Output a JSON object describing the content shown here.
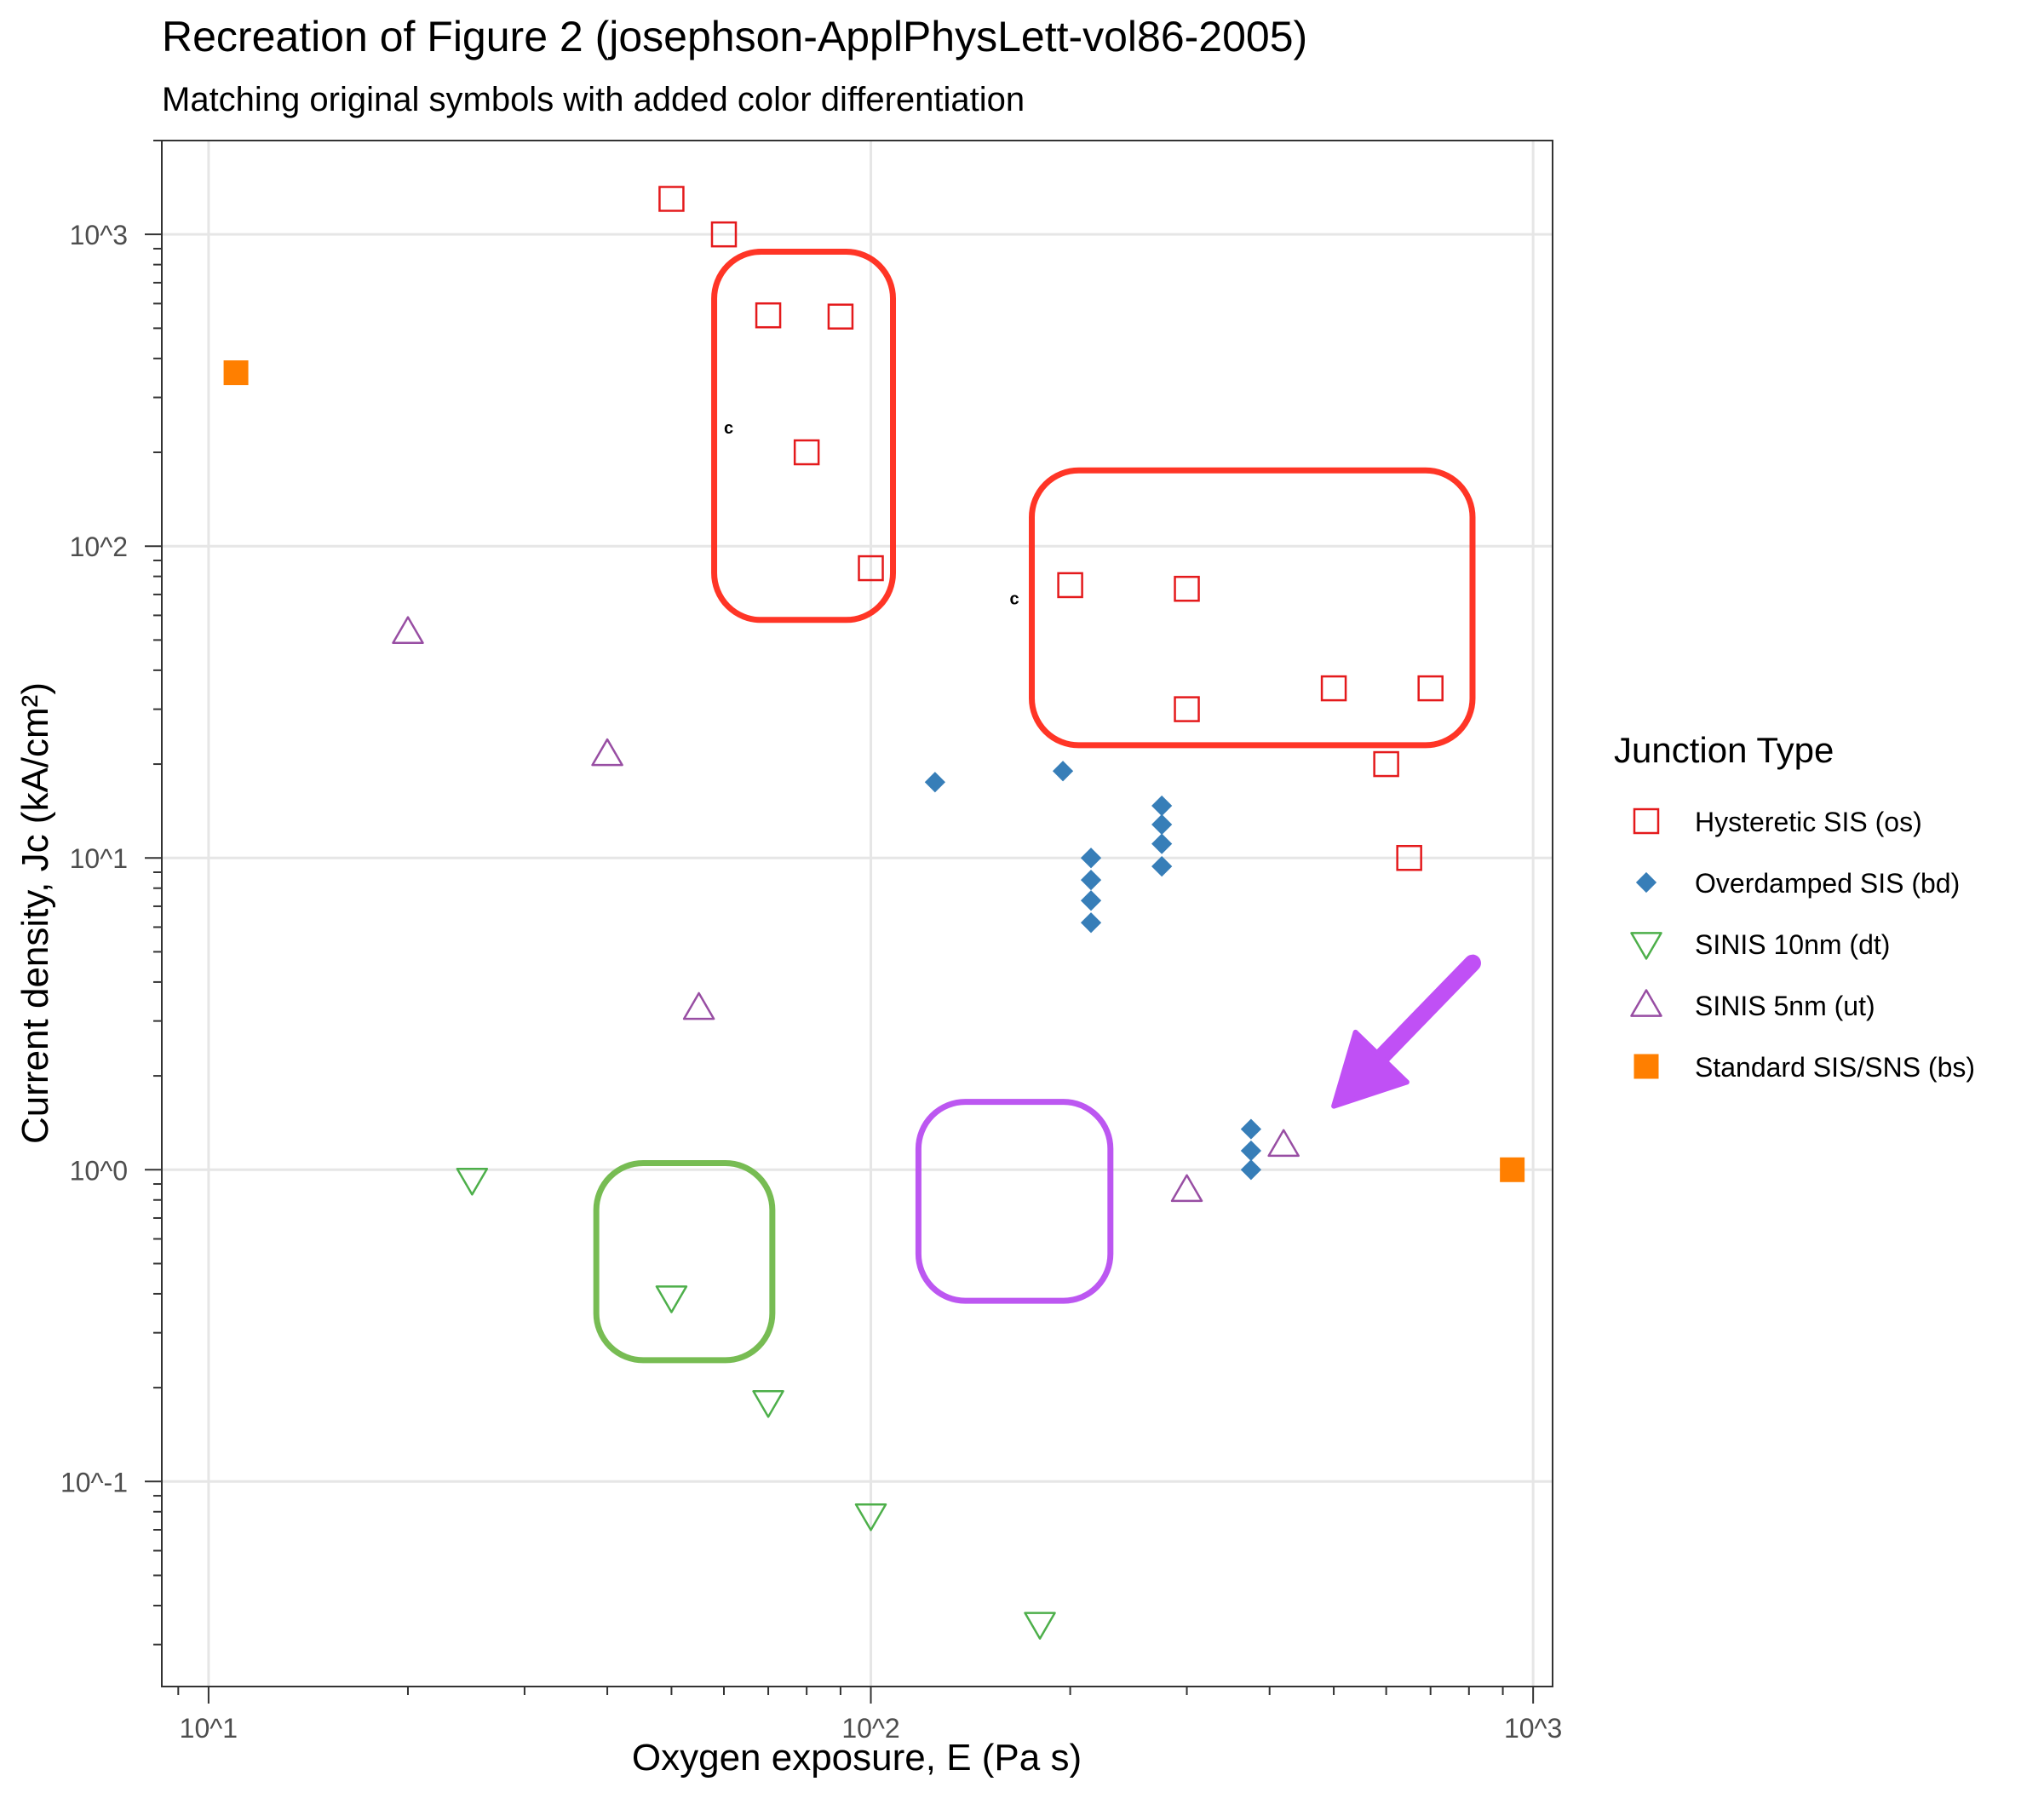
{
  "chart_data": {
    "type": "scatter",
    "title": "Recreation of Figure 2 (josephson-ApplPhysLett-vol86-2005)",
    "subtitle": "Matching original symbols with added color differentiation",
    "xlabel": "Oxygen exposure, E (Pa s)",
    "ylabel": "Current density, Jc (kA/cm²)",
    "x_scale": "log10",
    "y_scale": "log10",
    "xlim": [
      8.5,
      1070
    ],
    "ylim": [
      0.022,
      2000
    ],
    "x_ticks": [
      {
        "value": 10,
        "label": "10^1"
      },
      {
        "value": 100,
        "label": "10^2"
      },
      {
        "value": 1000,
        "label": "10^3"
      }
    ],
    "y_ticks": [
      {
        "value": 0.1,
        "label": "10^-1"
      },
      {
        "value": 1,
        "label": "10^0"
      },
      {
        "value": 10,
        "label": "10^1"
      },
      {
        "value": 100,
        "label": "10^2"
      },
      {
        "value": 1000,
        "label": "10^3"
      }
    ],
    "grid": true,
    "legend": {
      "title": "Junction Type",
      "position": "right"
    },
    "series": [
      {
        "name": "Hysteretic SIS (os)",
        "marker": "open-square",
        "color": "#e41a1c",
        "points": [
          [
            50,
            1300
          ],
          [
            60,
            1000
          ],
          [
            70,
            550
          ],
          [
            90,
            545
          ],
          [
            80,
            200
          ],
          [
            100,
            85
          ],
          [
            200,
            75
          ],
          [
            300,
            73
          ],
          [
            300,
            30
          ],
          [
            500,
            35
          ],
          [
            700,
            35
          ],
          [
            600,
            20
          ],
          [
            650,
            10
          ]
        ]
      },
      {
        "name": "Overdamped SIS (bd)",
        "marker": "filled-diamond",
        "color": "#377eb8",
        "points": [
          [
            125,
            17.5
          ],
          [
            195,
            19
          ],
          [
            215,
            10
          ],
          [
            215,
            8.5
          ],
          [
            215,
            7.3
          ],
          [
            215,
            6.2
          ],
          [
            275,
            14.7
          ],
          [
            275,
            12.8
          ],
          [
            275,
            11.1
          ],
          [
            275,
            9.4
          ],
          [
            375,
            1.35
          ],
          [
            375,
            1.15
          ],
          [
            375,
            1.0
          ]
        ]
      },
      {
        "name": "SINIS 10nm (dt)",
        "marker": "open-triangle-down",
        "color": "#4daf4a",
        "points": [
          [
            25,
            0.93
          ],
          [
            50,
            0.39
          ],
          [
            70,
            0.18
          ],
          [
            100,
            0.078
          ],
          [
            180,
            0.035
          ]
        ]
      },
      {
        "name": "SINIS 5nm (ut)",
        "marker": "open-triangle-up",
        "color": "#984ea3",
        "points": [
          [
            20,
            53
          ],
          [
            40,
            21.5
          ],
          [
            55,
            3.3
          ],
          [
            300,
            0.86
          ],
          [
            420,
            1.2
          ]
        ]
      },
      {
        "name": "Standard SIS/SNS (bs)",
        "marker": "filled-square",
        "color": "#ff7f00",
        "points": [
          [
            11,
            360
          ],
          [
            930,
            1.0
          ]
        ]
      }
    ],
    "annotations": [
      {
        "type": "rounded-box",
        "color": "#ff2a1a",
        "x_range": [
          58,
          108
        ],
        "y_range": [
          58,
          880
        ]
      },
      {
        "type": "rounded-box",
        "color": "#ff2a1a",
        "x_range": [
          175,
          810
        ],
        "y_range": [
          23,
          175
        ]
      },
      {
        "type": "rounded-box",
        "color": "#70b84a",
        "x_range": [
          38.5,
          71
        ],
        "y_range": [
          0.245,
          1.05
        ]
      },
      {
        "type": "rounded-box",
        "color": "#b84ef0",
        "x_range": [
          118,
          230
        ],
        "y_range": [
          0.38,
          1.65
        ]
      },
      {
        "type": "arrow",
        "color": "#c050f5",
        "from": [
          810,
          4.6
        ],
        "to": [
          500,
          1.6
        ]
      },
      {
        "type": "text",
        "text": "c",
        "x": 60,
        "y": 230
      },
      {
        "type": "text",
        "text": "c",
        "x": 162,
        "y": 65
      }
    ]
  }
}
